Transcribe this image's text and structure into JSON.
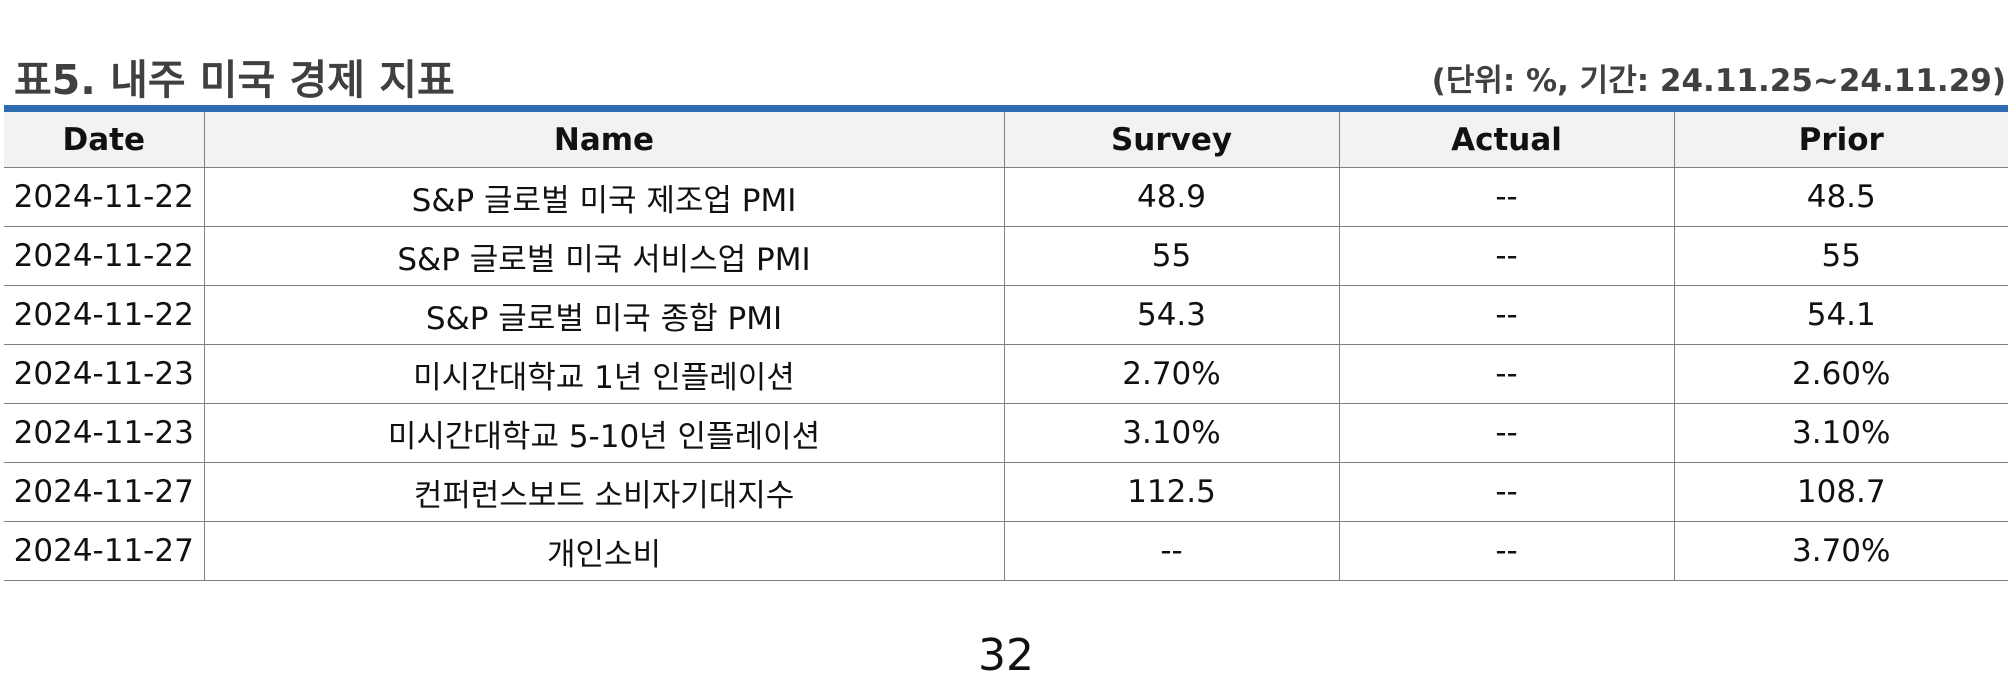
{
  "header": {
    "title": "표5. 내주 미국 경제 지표",
    "unit_note": "(단위: %, 기간: 24.11.25~24.11.29)"
  },
  "colors": {
    "rule_blue": "#2f6bb0",
    "header_fill": "#f2f2f2",
    "title_text": "#404040"
  },
  "table": {
    "columns": [
      "Date",
      "Name",
      "Survey",
      "Actual",
      "Prior"
    ],
    "rows": [
      [
        "2024-11-22",
        "S&P 글로벌 미국 제조업 PMI",
        "48.9",
        "--",
        "48.5"
      ],
      [
        "2024-11-22",
        "S&P 글로벌 미국 서비스업 PMI",
        "55",
        "--",
        "55"
      ],
      [
        "2024-11-22",
        "S&P 글로벌 미국 종합 PMI",
        "54.3",
        "--",
        "54.1"
      ],
      [
        "2024-11-23",
        "미시간대학교 1년 인플레이션",
        "2.70%",
        "--",
        "2.60%"
      ],
      [
        "2024-11-23",
        "미시간대학교 5-10년 인플레이션",
        "3.10%",
        "--",
        "3.10%"
      ],
      [
        "2024-11-27",
        "컨퍼런스보드 소비자기대지수",
        "112.5",
        "--",
        "108.7"
      ],
      [
        "2024-11-27",
        "개인소비",
        "--",
        "--",
        "3.70%"
      ]
    ]
  },
  "footer": {
    "page_number": "32"
  }
}
